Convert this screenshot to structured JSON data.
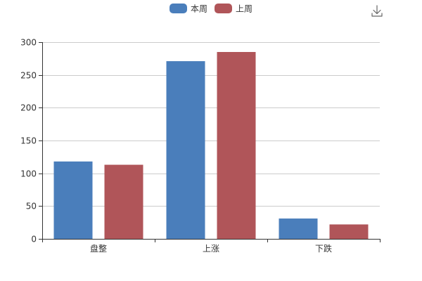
{
  "toolbar": {
    "download_icon": "download-icon"
  },
  "chart_data": {
    "type": "bar",
    "categories": [
      "盘整",
      "上涨",
      "下跌"
    ],
    "series": [
      {
        "name": "本周",
        "values": [
          118,
          271,
          31
        ],
        "color": "#4a7ebb"
      },
      {
        "name": "上周",
        "values": [
          113,
          285,
          22
        ],
        "color": "#b05559"
      }
    ],
    "ylim": [
      0,
      300
    ],
    "yticks": [
      0,
      50,
      100,
      150,
      200,
      250,
      300
    ],
    "grid": true,
    "legend_position": "top-center",
    "title": "",
    "xlabel": "",
    "ylabel": ""
  }
}
